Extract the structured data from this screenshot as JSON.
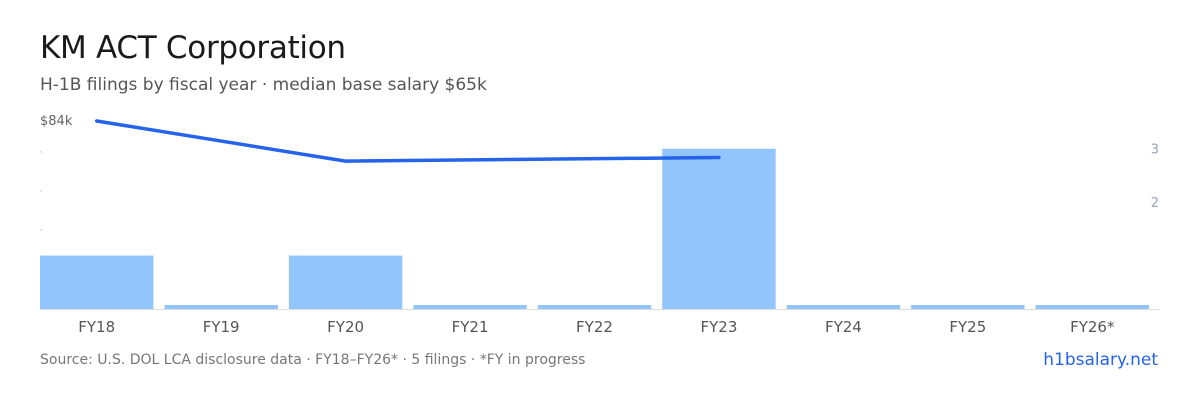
{
  "title": "KM ACT Corporation",
  "subtitle": "H-1B filings by fiscal year · median base salary $65k",
  "footer": {
    "source": "Source: U.S. DOL LCA disclosure data · FY18–FY26* · 5 filings · *FY in progress",
    "brand": "h1bsalary.net"
  },
  "colors": {
    "bar": "#93c5fd",
    "line": "#2563eb",
    "axis_text": "#9aa3b2",
    "tick_text": "#555555",
    "baseline": "#dddddd"
  },
  "chart_data": {
    "type": "bar",
    "categories": [
      "FY18",
      "FY19",
      "FY20",
      "FY21",
      "FY22",
      "FY23",
      "FY24",
      "FY25",
      "FY26*"
    ],
    "series": [
      {
        "type": "bar",
        "axis": "right",
        "values": [
          1,
          0,
          1,
          0,
          0,
          3,
          0,
          0,
          0
        ]
      },
      {
        "type": "line",
        "axis": "left",
        "values": [
          84,
          null,
          73,
          null,
          null,
          74,
          null,
          null,
          null
        ]
      }
    ],
    "left_axis": {
      "tick_label": "$84k",
      "tick_value": 84
    },
    "right_axis": {
      "ticks": [
        3,
        2
      ],
      "ylim": [
        0,
        3.5
      ]
    },
    "grid": false,
    "legend": "none"
  }
}
